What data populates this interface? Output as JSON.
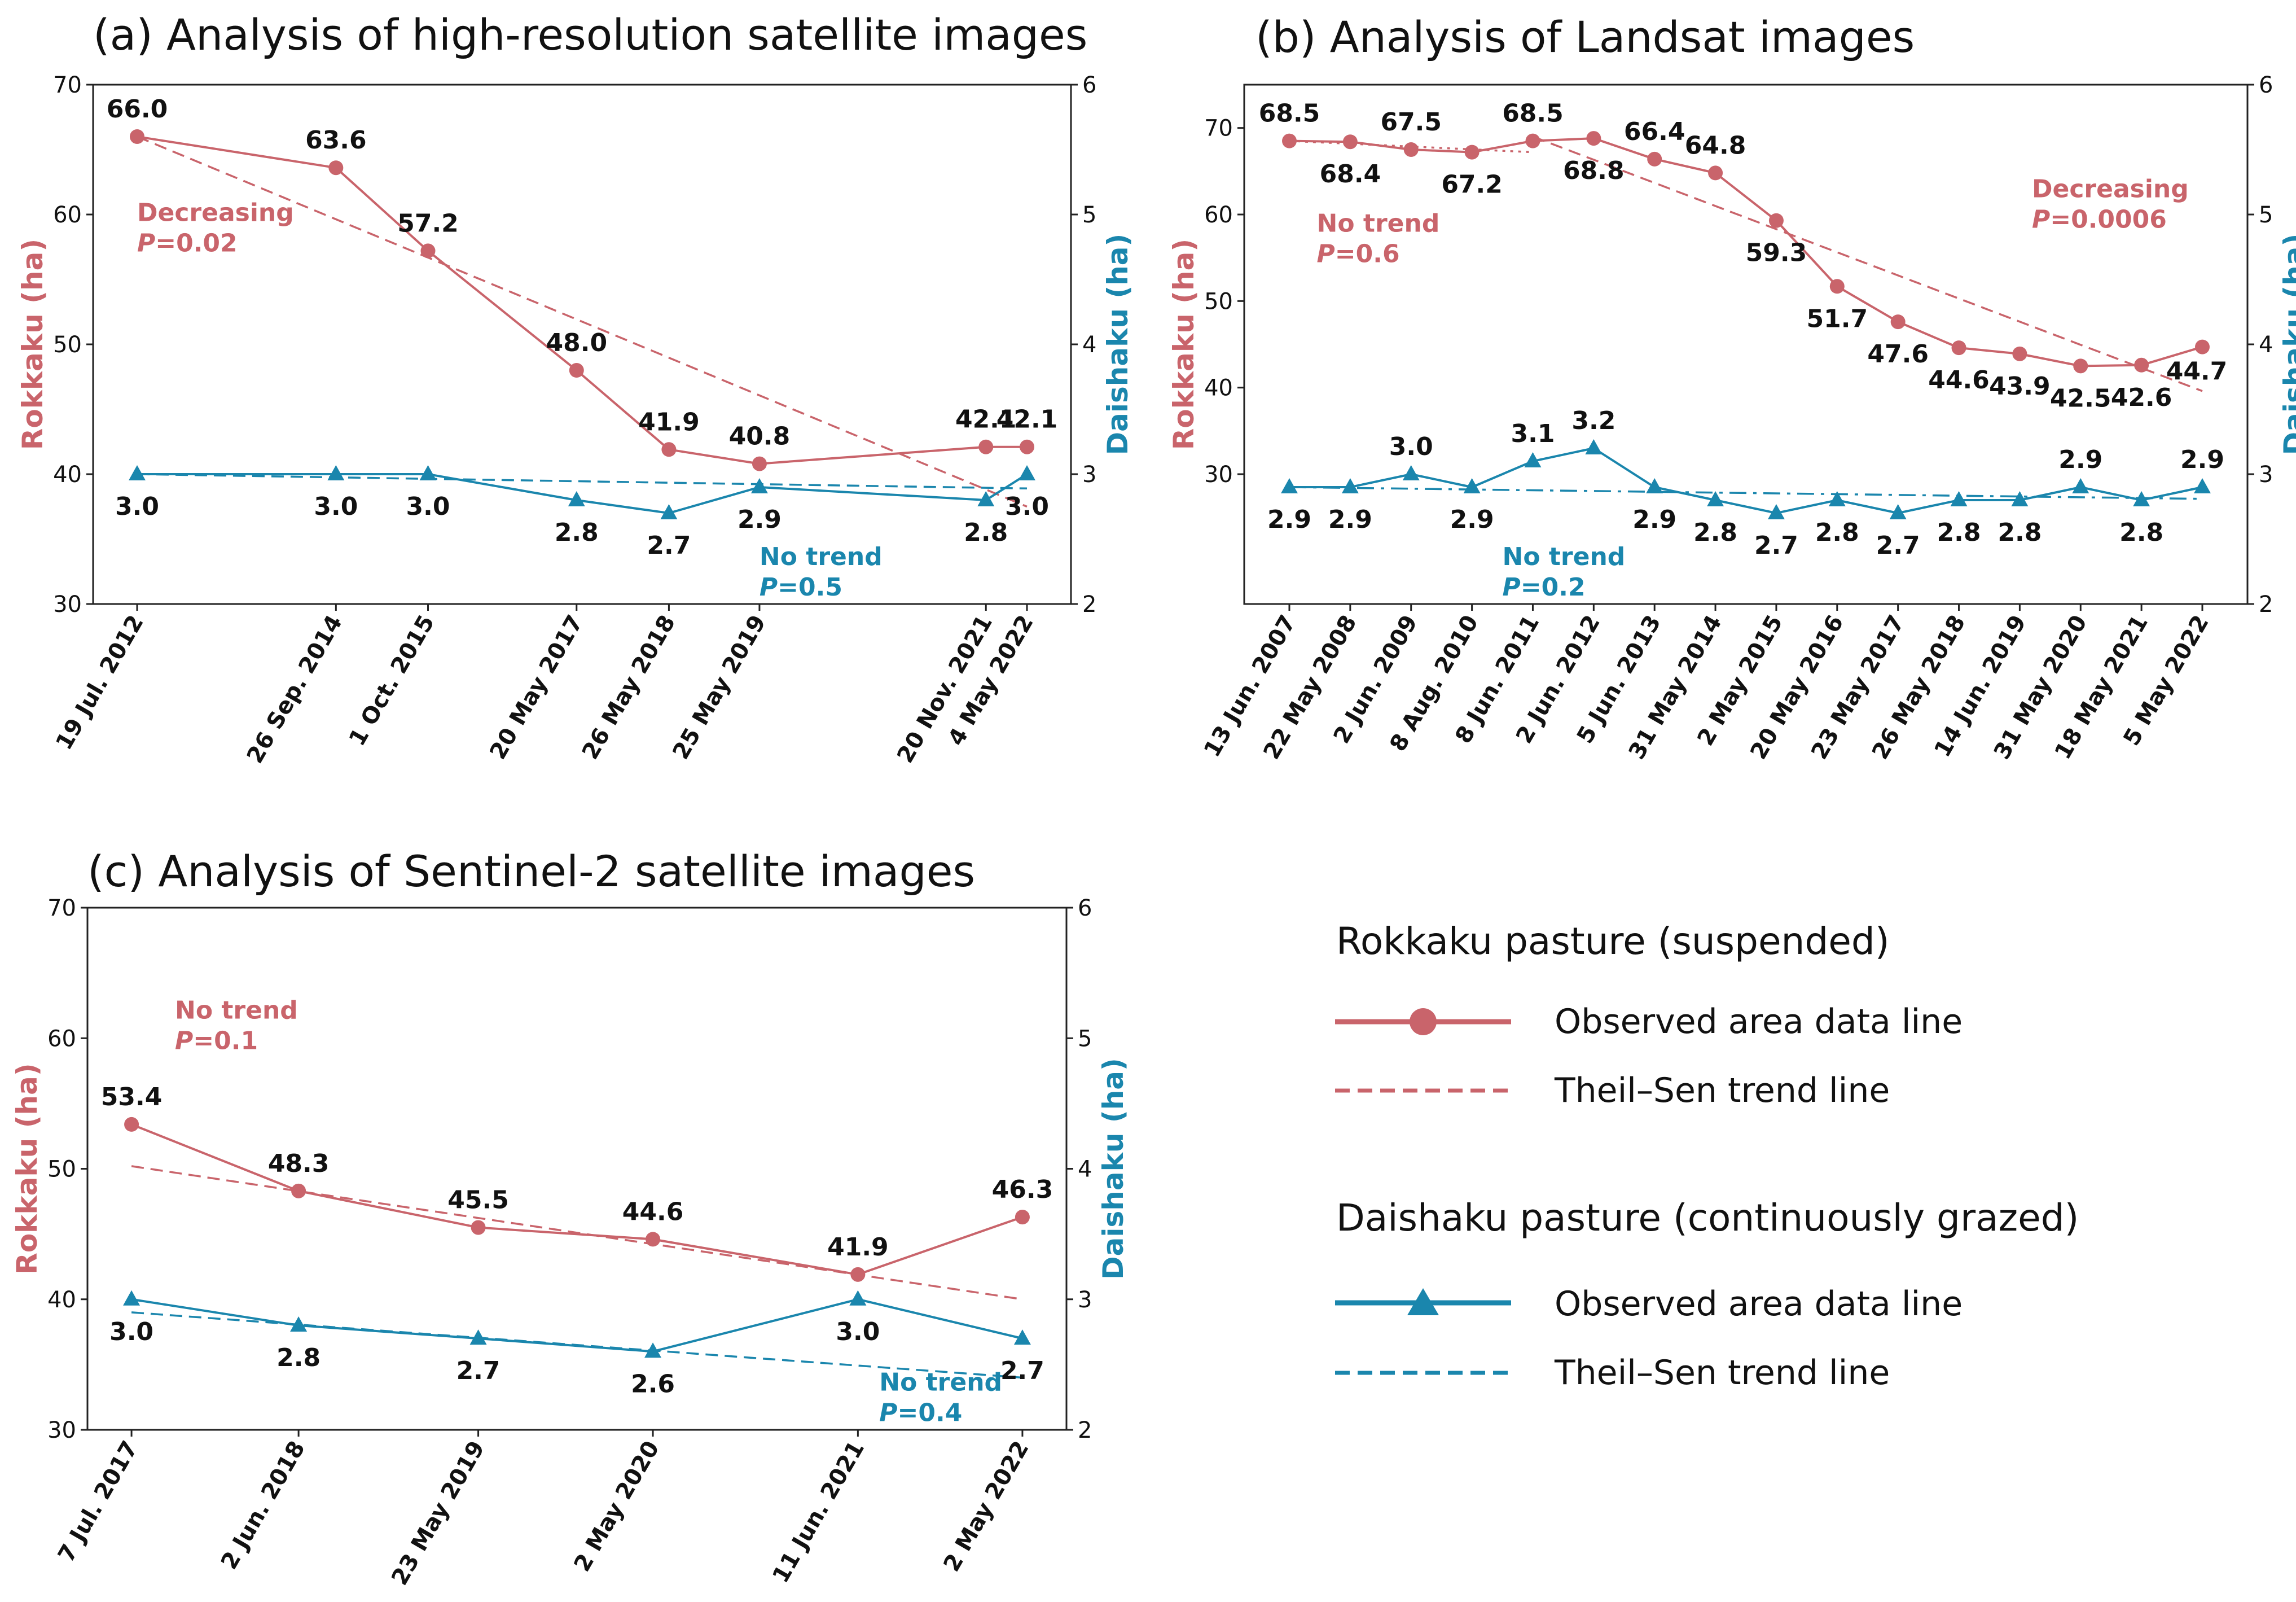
{
  "colors": {
    "rokkaku": "#c9646b",
    "daishaku": "#1a86ad",
    "axis": "#222222"
  },
  "chart_data": [
    {
      "id": "a",
      "type": "line",
      "title": "(a) Analysis of high-resolution satellite images",
      "x_mode": "date",
      "dates": [
        "2012-07-19",
        "2014-09-26",
        "2015-10-01",
        "2017-05-20",
        "2018-05-26",
        "2019-05-25",
        "2021-11-20",
        "2022-05-04"
      ],
      "date_labels": [
        "19 Jul. 2012",
        "26 Sep. 2014",
        "1 Oct. 2015",
        "20 May 2017",
        "26 May 2018",
        "25 May 2019",
        "20 Nov. 2021",
        "4 May 2022"
      ],
      "left_axis": {
        "label": "Rokkaku (ha)",
        "range": [
          30,
          70
        ],
        "ticks": [
          30,
          40,
          50,
          60,
          70
        ]
      },
      "right_axis": {
        "label": "Daishaku (ha)",
        "range": [
          2,
          6
        ],
        "ticks": [
          2,
          3,
          4,
          5,
          6
        ]
      },
      "rokkaku": {
        "values": [
          66.0,
          63.6,
          57.2,
          48.0,
          41.9,
          40.8,
          42.1,
          42.1
        ],
        "value_labels": [
          "66.0",
          "63.6",
          "57.2",
          "48.0",
          "41.9",
          "40.8",
          "42.1",
          "42.1"
        ],
        "label_pos": [
          "above",
          "above",
          "above",
          "above",
          "above",
          "above",
          "above",
          "above"
        ],
        "trend": [
          {
            "from": 0,
            "to": 7,
            "y0": 66.0,
            "y1": 37.5,
            "style": "dashed"
          }
        ],
        "annotation": {
          "lines": [
            "Decreasing",
            "P=0.02"
          ],
          "anchor_x_index": 0,
          "anchor_y": 59.5
        }
      },
      "daishaku": {
        "values": [
          3.0,
          3.0,
          3.0,
          2.8,
          2.7,
          2.9,
          2.8,
          3.0
        ],
        "value_labels": [
          "3.0",
          "3.0",
          "3.0",
          "2.8",
          "2.7",
          "2.9",
          "2.8",
          "3.0"
        ],
        "label_pos": [
          "below",
          "below",
          "below",
          "below",
          "below",
          "below",
          "below",
          "below"
        ],
        "trend": [
          {
            "from": 0,
            "to": 7,
            "y0": 3.0,
            "y1": 2.89,
            "style": "dashed"
          }
        ],
        "annotation": {
          "lines": [
            "No trend",
            "P=0.5"
          ],
          "anchor_x_index": 5,
          "anchor_y": 2.3
        }
      }
    },
    {
      "id": "b",
      "type": "line",
      "title": "(b) Analysis of Landsat images",
      "x_mode": "index",
      "date_labels": [
        "13 Jun. 2007",
        "22 May 2008",
        "2 Jun. 2009",
        "8 Aug. 2010",
        "8 Jun. 2011",
        "2 Jun. 2012",
        "5 Jun. 2013",
        "31 May 2014",
        "2 May 2015",
        "20 May 2016",
        "23 May 2017",
        "26 May 2018",
        "14 Jun. 2019",
        "31 May 2020",
        "18 May 2021",
        "5 May 2022"
      ],
      "left_axis": {
        "label": "Rokkaku (ha)",
        "range": [
          15,
          75
        ],
        "ticks": [
          30,
          40,
          50,
          60,
          70
        ]
      },
      "right_axis": {
        "label": "Daishaku (ha)",
        "range": [
          2,
          6
        ],
        "ticks": [
          2,
          3,
          4,
          5,
          6
        ]
      },
      "rokkaku": {
        "values": [
          68.5,
          68.4,
          67.5,
          67.2,
          68.5,
          68.8,
          66.4,
          64.8,
          59.3,
          51.7,
          47.6,
          44.6,
          43.9,
          42.5,
          42.6,
          44.7
        ],
        "value_labels": [
          "68.5",
          "68.4",
          "67.5",
          "67.2",
          "68.5",
          "68.8",
          "66.4",
          "64.8",
          "59.3",
          "51.7",
          "47.6",
          "44.6",
          "43.9",
          "42.5",
          "42.6",
          "44.7"
        ],
        "label_pos": [
          "above",
          "below",
          "above",
          "below",
          "above",
          "below",
          "above",
          "above",
          "below",
          "below",
          "below",
          "below",
          "below",
          "below",
          "below",
          "right"
        ],
        "trend": [
          {
            "from": 0,
            "to": 4,
            "y0": 68.5,
            "y1": 67.2,
            "style": "dotted"
          },
          {
            "from": 4,
            "to": 15,
            "y0": 69.0,
            "y1": 39.6,
            "style": "dashed"
          }
        ],
        "annotation_list": [
          {
            "lines": [
              "No trend",
              "P=0.6"
            ],
            "anchor_x_index": 0.45,
            "anchor_y": 58.0
          },
          {
            "lines": [
              "Decreasing",
              "P=0.0006"
            ],
            "anchor_x_index": 12.2,
            "anchor_y": 62.0
          }
        ]
      },
      "daishaku": {
        "values": [
          2.9,
          2.9,
          3.0,
          2.9,
          3.1,
          3.2,
          2.9,
          2.8,
          2.7,
          2.8,
          2.7,
          2.8,
          2.8,
          2.9,
          2.8,
          2.9
        ],
        "value_labels": [
          "2.9",
          "2.9",
          "3.0",
          "2.9",
          "3.1",
          "3.2",
          "2.9",
          "2.8",
          "2.7",
          "2.8",
          "2.7",
          "2.8",
          "2.8",
          "2.9",
          "2.8",
          "2.9"
        ],
        "label_pos": [
          "below",
          "below",
          "above",
          "below",
          "above",
          "above",
          "below",
          "below",
          "below",
          "below",
          "below",
          "below",
          "below",
          "above",
          "below",
          "above"
        ],
        "trend": [
          {
            "from": 0,
            "to": 15,
            "y0": 2.9,
            "y1": 2.81,
            "style": "dashdot"
          }
        ],
        "annotation": {
          "lines": [
            "No trend",
            "P=0.2"
          ],
          "anchor_x_index": 3.5,
          "anchor_y": 2.3
        }
      }
    },
    {
      "id": "c",
      "type": "line",
      "title": "(c) Analysis of Sentinel-2 satellite images",
      "x_mode": "date",
      "dates": [
        "2017-07-07",
        "2018-06-02",
        "2019-05-23",
        "2020-05-02",
        "2021-06-11",
        "2022-05-02"
      ],
      "date_labels": [
        "7 Jul. 2017",
        "2 Jun. 2018",
        "23 May 2019",
        "2 May 2020",
        "11 Jun. 2021",
        "2 May 2022"
      ],
      "left_axis": {
        "label": "Rokkaku (ha)",
        "range": [
          30,
          70
        ],
        "ticks": [
          30,
          40,
          50,
          60,
          70
        ]
      },
      "right_axis": {
        "label": "Daishaku (ha)",
        "range": [
          2,
          6
        ],
        "ticks": [
          2,
          3,
          4,
          5,
          6
        ]
      },
      "rokkaku": {
        "values": [
          53.4,
          48.3,
          45.5,
          44.6,
          41.9,
          46.3
        ],
        "value_labels": [
          "53.4",
          "48.3",
          "45.5",
          "44.6",
          "41.9",
          "46.3"
        ],
        "label_pos": [
          "above",
          "above",
          "above",
          "above",
          "above",
          "above"
        ],
        "trend": [
          {
            "from": 0,
            "to": 5,
            "y0": 50.2,
            "y1": 40.0,
            "style": "dashed"
          }
        ],
        "annotation": {
          "lines": [
            "No trend",
            "P=0.1"
          ],
          "anchor_x_index": 0.26,
          "anchor_y": 61.5
        }
      },
      "daishaku": {
        "values": [
          3.0,
          2.8,
          2.7,
          2.6,
          3.0,
          2.7
        ],
        "value_labels": [
          "3.0",
          "2.8",
          "2.7",
          "2.6",
          "3.0",
          "2.7"
        ],
        "label_pos": [
          "below",
          "below",
          "below",
          "below",
          "below",
          "below"
        ],
        "trend": [
          {
            "from": 0,
            "to": 5,
            "y0": 2.9,
            "y1": 2.4,
            "style": "dashed"
          }
        ],
        "annotation": {
          "lines": [
            "No trend",
            "P=0.4"
          ],
          "anchor_x_index": 4.13,
          "anchor_y": 2.3
        }
      }
    }
  ],
  "legend": {
    "rokkaku_heading": "Rokkaku pasture (suspended)",
    "daishaku_heading": "Daishaku pasture (continuously grazed)",
    "observed_label": "Observed area data line",
    "trend_label": "Theil–Sen trend line"
  }
}
